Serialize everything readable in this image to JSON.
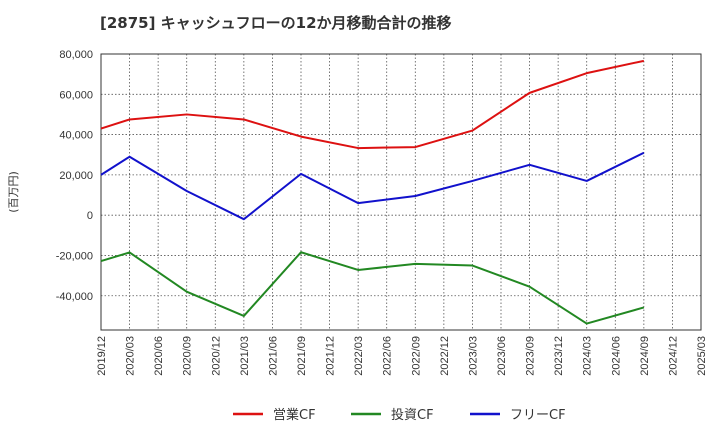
{
  "chart_data": {
    "type": "line",
    "title": "[2875]  キャッシュフローの12か月移動合計の推移",
    "ylabel": "(百万円)",
    "xlabel": "",
    "ylim": [
      -57000,
      80000
    ],
    "yticks": [
      80000,
      60000,
      40000,
      20000,
      0,
      -20000,
      -40000
    ],
    "ytick_labels": [
      "80,000",
      "60,000",
      "40,000",
      "20,000",
      "0",
      "-20,000",
      "-40,000"
    ],
    "categories": [
      "2019/12",
      "2020/03",
      "2020/06",
      "2020/09",
      "2020/12",
      "2021/03",
      "2021/06",
      "2021/09",
      "2021/12",
      "2022/03",
      "2022/06",
      "2022/09",
      "2022/12",
      "2023/03",
      "2023/06",
      "2023/09",
      "2023/12",
      "2024/03",
      "2024/06",
      "2024/09",
      "2024/12",
      "2025/03"
    ],
    "grid": true,
    "legend_position": "bottom",
    "series": [
      {
        "name": "営業CF",
        "color": "#dd1111",
        "x": [
          "2019/12",
          "2020/03",
          "2020/09",
          "2021/03",
          "2021/09",
          "2022/03",
          "2022/09",
          "2023/03",
          "2023/09",
          "2024/03",
          "2024/09"
        ],
        "values": [
          43000,
          47500,
          50000,
          47500,
          39000,
          33300,
          33800,
          42000,
          60700,
          70500,
          76600
        ]
      },
      {
        "name": "投資CF",
        "color": "#228822",
        "x": [
          "2019/12",
          "2020/03",
          "2020/09",
          "2021/03",
          "2021/09",
          "2022/03",
          "2022/09",
          "2023/03",
          "2023/09",
          "2024/03",
          "2024/09"
        ],
        "values": [
          -22800,
          -18500,
          -38000,
          -50000,
          -18400,
          -27200,
          -24200,
          -25000,
          -35500,
          -53800,
          -45800
        ]
      },
      {
        "name": "フリーCF",
        "color": "#1111cc",
        "x": [
          "2019/12",
          "2020/03",
          "2020/09",
          "2021/03",
          "2021/09",
          "2022/03",
          "2022/09",
          "2023/03",
          "2023/09",
          "2024/03",
          "2024/09"
        ],
        "values": [
          20000,
          29000,
          12000,
          -2000,
          20500,
          6000,
          9500,
          17000,
          25000,
          17000,
          31000
        ]
      }
    ]
  }
}
